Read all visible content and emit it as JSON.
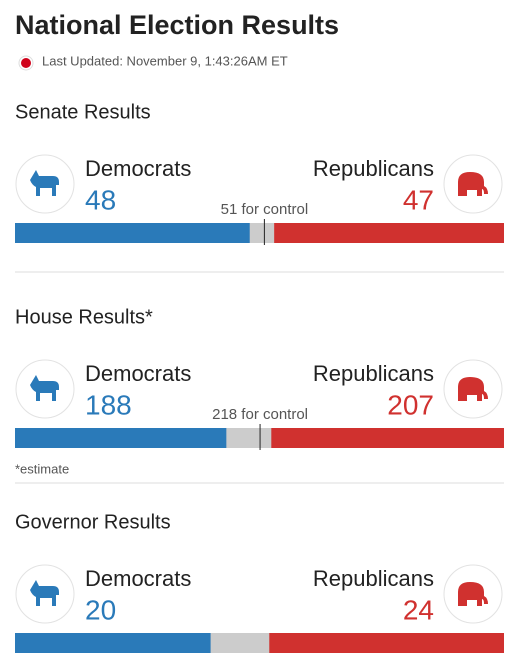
{
  "header": {
    "title": "National Election Results",
    "updated": "Last Updated: November 9, 1:43:26AM ET"
  },
  "sections": [
    {
      "title": "Senate Results",
      "dem_label": "Democrats",
      "dem_seats": 48,
      "rep_label": "Republicans",
      "rep_seats": 47,
      "control_label": "51 for control",
      "control_seats": 51,
      "xlim": [
        0,
        100
      ]
    },
    {
      "title": "House Results*",
      "dem_label": "Democrats",
      "dem_seats": 188,
      "rep_label": "Republicans",
      "rep_seats": 207,
      "control_label": "218 for control",
      "control_seats": 218,
      "xlim": [
        0,
        435
      ],
      "note": "*estimate"
    },
    {
      "title": "Governor Results",
      "dem_label": "Democrats",
      "dem_seats": 20,
      "rep_label": "Republicans",
      "rep_seats": 24,
      "xlim": [
        0,
        50
      ]
    }
  ],
  "colors": {
    "dem": "#2a7ab9",
    "rep": "#d0312f",
    "undecided": "#cccccc"
  }
}
